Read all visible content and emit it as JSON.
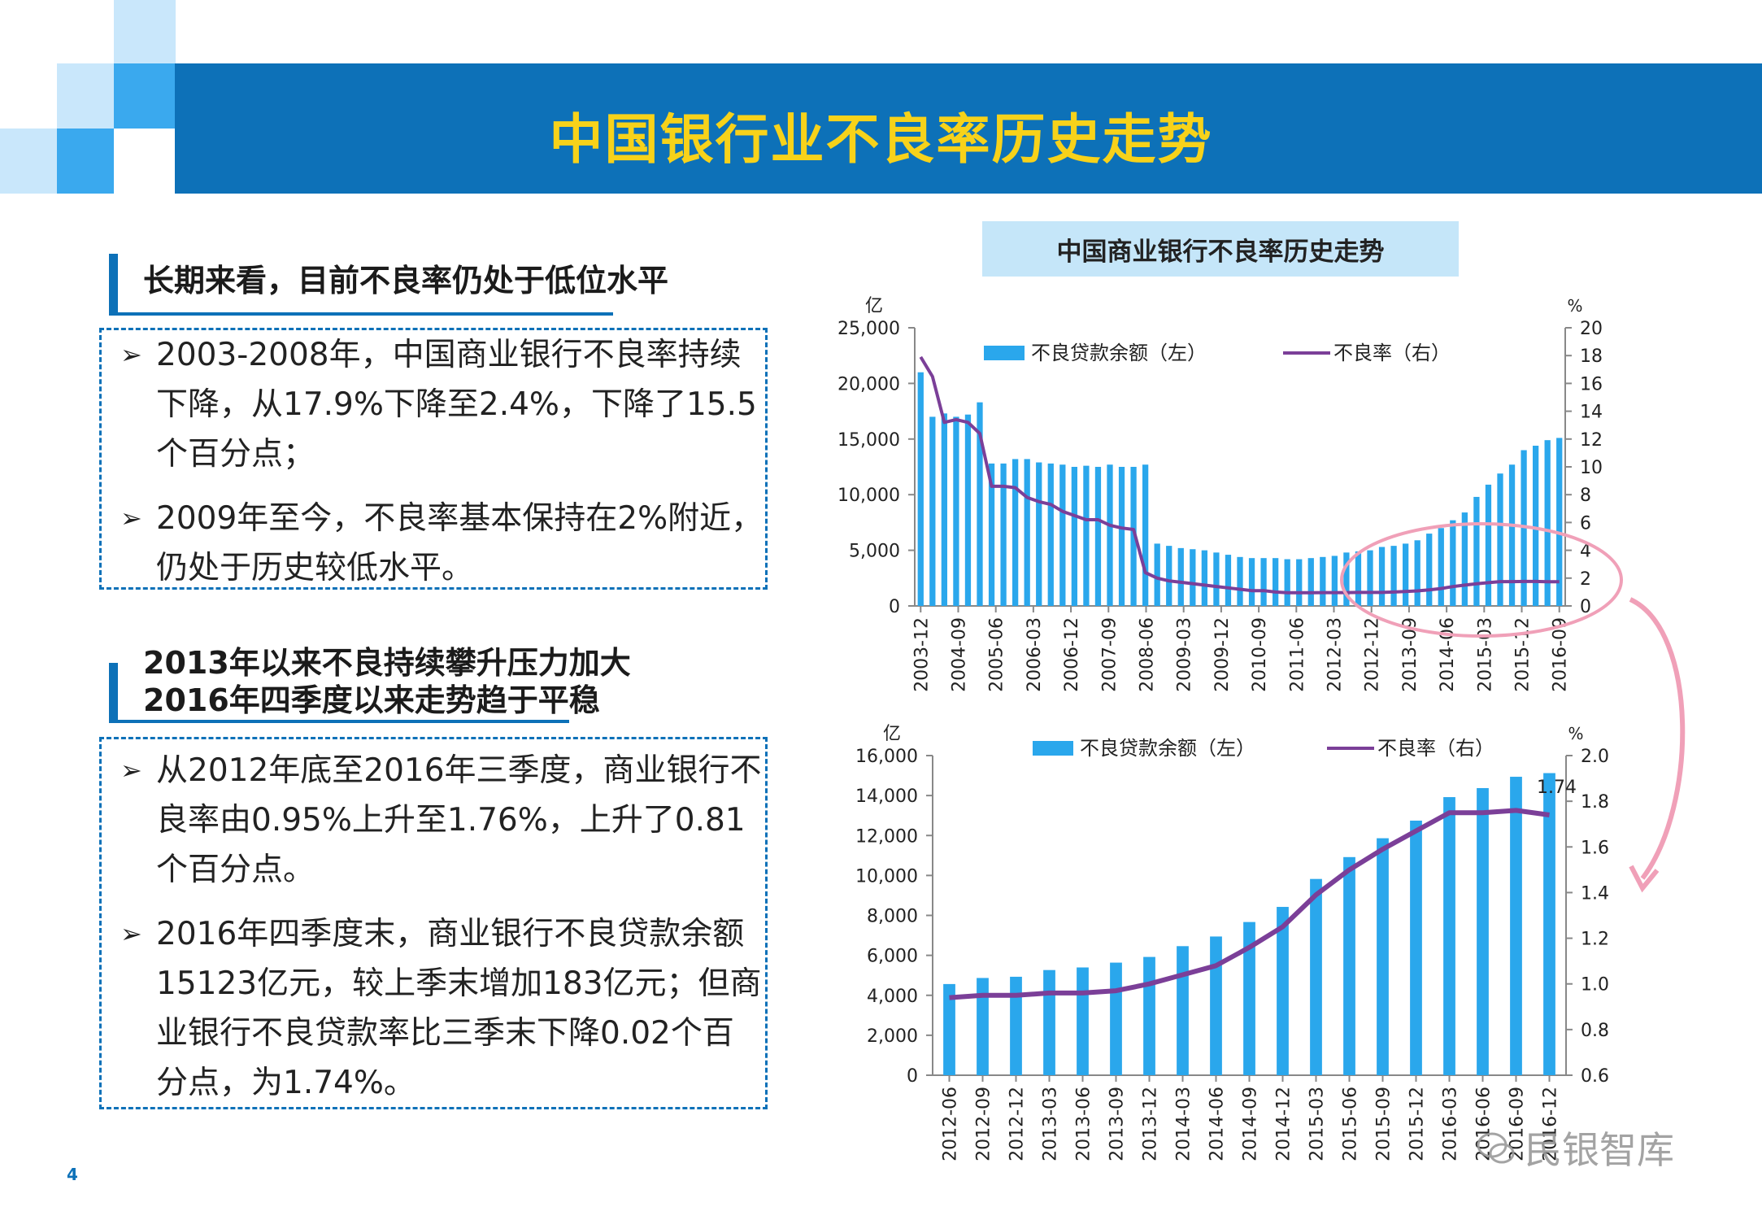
{
  "slide": {
    "title": "中国银行业不良率历史走势",
    "page_number": "4",
    "watermark": "民银智库"
  },
  "section1": {
    "title": "长期来看，目前不良率仍处于低位水平",
    "bullets": [
      "2003-2008年，中国商业银行不良率持续下降，从17.9%下降至2.4%，下降了15.5个百分点；",
      "2009年至今，不良率基本保持在2%附近，仍处于历史较低水平。"
    ]
  },
  "section2": {
    "title_line1": "2013年以来不良持续攀升压力加大",
    "title_line2": "2016年四季度以来走势趋于平稳",
    "bullets": [
      "从2012年底至2016年三季度，商业银行不良率由0.95%上升至1.76%，上升了0.81个百分点。",
      "2016年四季度末，商业银行不良贷款余额15123亿元，较上季末增加183亿元；但商业银行不良贷款率比三季末下降0.02个百分点，为1.74%。"
    ]
  },
  "colors": {
    "brand_blue": "#0d71b8",
    "title_yellow": "#f7d21a",
    "bar": "#2aa7ec",
    "line": "#7b3f98",
    "circle": "#f0a0b8"
  },
  "chart_data": [
    {
      "type": "bar+line",
      "title": "中国商业银行不良率历史走势",
      "left_axis_unit": "亿",
      "right_axis_unit": "%",
      "ylim_left": [
        0,
        25000
      ],
      "ylim_right": [
        0,
        20
      ],
      "y_ticks_left": [
        "0",
        "5,000",
        "10,000",
        "15,000",
        "20,000",
        "25,000"
      ],
      "y_ticks_right": [
        "0",
        "2",
        "4",
        "6",
        "8",
        "10",
        "12",
        "14",
        "16",
        "18",
        "20"
      ],
      "x_tick_labels": [
        "2003-12",
        "2004-09",
        "2005-06",
        "2006-03",
        "2006-12",
        "2007-09",
        "2008-06",
        "2009-03",
        "2009-12",
        "2010-09",
        "2011-06",
        "2012-03",
        "2012-12",
        "2013-09",
        "2014-06",
        "2015-03",
        "2015-12",
        "2016-09"
      ],
      "series": [
        {
          "name": "不良贷款余额（左）",
          "kind": "bar",
          "values": [
            21000,
            17000,
            17300,
            17000,
            17200,
            18300,
            12800,
            12800,
            13200,
            13200,
            12900,
            12800,
            12700,
            12500,
            12600,
            12500,
            12700,
            12500,
            12500,
            12700,
            5600,
            5400,
            5200,
            5100,
            5000,
            4800,
            4600,
            4400,
            4300,
            4300,
            4300,
            4200,
            4200,
            4300,
            4400,
            4500,
            4800,
            4900,
            5000,
            5300,
            5400,
            5600,
            5900,
            6500,
            7000,
            7700,
            8400,
            9800,
            10900,
            11900,
            12700,
            14000,
            14400,
            14900,
            15100
          ]
        },
        {
          "name": "不良率（右）",
          "kind": "line",
          "values": [
            17.9,
            16.5,
            13.2,
            13.4,
            13.2,
            12.4,
            8.6,
            8.6,
            8.5,
            7.8,
            7.5,
            7.3,
            6.8,
            6.5,
            6.2,
            6.2,
            5.8,
            5.6,
            5.5,
            2.4,
            2.0,
            1.8,
            1.7,
            1.6,
            1.5,
            1.4,
            1.3,
            1.2,
            1.1,
            1.1,
            1.0,
            0.95,
            0.95,
            0.95,
            0.96,
            0.96,
            0.96,
            0.97,
            0.97,
            0.97,
            1.0,
            1.04,
            1.08,
            1.16,
            1.25,
            1.39,
            1.5,
            1.59,
            1.67,
            1.75,
            1.75,
            1.76,
            1.76,
            1.74,
            1.74
          ]
        }
      ]
    },
    {
      "type": "bar+line",
      "title": "",
      "left_axis_unit": "亿",
      "right_axis_unit": "%",
      "ylim_left": [
        0,
        16000
      ],
      "ylim_right": [
        0.6,
        2.0
      ],
      "y_ticks_left": [
        "0",
        "2,000",
        "4,000",
        "6,000",
        "8,000",
        "10,000",
        "12,000",
        "14,000",
        "16,000"
      ],
      "y_ticks_right": [
        "0.6",
        "0.8",
        "1.0",
        "1.2",
        "1.4",
        "1.6",
        "1.8",
        "2.0"
      ],
      "categories": [
        "2012-06",
        "2012-09",
        "2012-12",
        "2013-03",
        "2013-06",
        "2013-09",
        "2013-12",
        "2014-03",
        "2014-06",
        "2014-09",
        "2014-12",
        "2015-03",
        "2015-06",
        "2015-09",
        "2015-12",
        "2016-03",
        "2016-06",
        "2016-09",
        "2016-12"
      ],
      "series": [
        {
          "name": "不良贷款余额（左）",
          "kind": "bar",
          "values": [
            4564,
            4868,
            4929,
            5265,
            5395,
            5636,
            5921,
            6461,
            6944,
            7669,
            8426,
            9825,
            10919,
            11863,
            12744,
            13921,
            14373,
            14940,
            15123
          ]
        },
        {
          "name": "不良率（右）",
          "kind": "line",
          "values": [
            0.94,
            0.95,
            0.95,
            0.96,
            0.96,
            0.97,
            1.0,
            1.04,
            1.08,
            1.16,
            1.25,
            1.39,
            1.5,
            1.59,
            1.67,
            1.75,
            1.75,
            1.76,
            1.74
          ]
        }
      ],
      "annotation": "1.74"
    }
  ]
}
